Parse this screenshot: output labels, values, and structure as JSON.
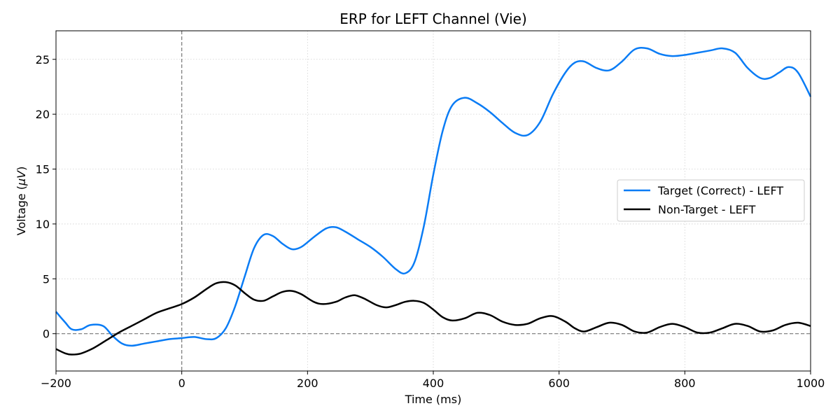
{
  "chart_data": {
    "type": "line",
    "title": "ERP for LEFT Channel (Vie)",
    "xlabel": "Time (ms)",
    "ylabel_prefix": "Voltage (",
    "ylabel_unit": "μV",
    "ylabel_suffix": ")",
    "xlim": [
      -200,
      1000
    ],
    "ylim": [
      -3.4,
      27.6
    ],
    "x_ticks": [
      -200,
      0,
      200,
      400,
      600,
      800,
      1000
    ],
    "y_ticks": [
      0,
      5,
      10,
      15,
      20,
      25
    ],
    "grid": true,
    "legend_position": "center-right",
    "reference_lines": {
      "x": 0,
      "y": 0
    },
    "series": [
      {
        "name": "Target (Correct) - LEFT",
        "color": "#0a7cf5",
        "x": [
          -200,
          -185,
          -175,
          -160,
          -145,
          -125,
          -110,
          -95,
          -80,
          -60,
          -40,
          -20,
          0,
          20,
          40,
          55,
          70,
          85,
          100,
          115,
          130,
          145,
          160,
          175,
          190,
          210,
          230,
          245,
          260,
          280,
          300,
          320,
          340,
          355,
          370,
          385,
          400,
          415,
          430,
          450,
          470,
          490,
          510,
          530,
          550,
          570,
          590,
          610,
          625,
          640,
          660,
          680,
          700,
          720,
          740,
          760,
          780,
          800,
          820,
          840,
          860,
          880,
          900,
          920,
          935,
          950,
          965,
          980,
          1000
        ],
        "y": [
          2.0,
          1.0,
          0.4,
          0.4,
          0.8,
          0.7,
          -0.2,
          -0.9,
          -1.1,
          -0.9,
          -0.7,
          -0.5,
          -0.4,
          -0.3,
          -0.5,
          -0.4,
          0.5,
          2.5,
          5.2,
          7.8,
          9.0,
          8.9,
          8.2,
          7.7,
          7.9,
          8.8,
          9.6,
          9.7,
          9.3,
          8.6,
          7.9,
          7.0,
          5.9,
          5.5,
          6.5,
          9.8,
          14.5,
          18.5,
          20.8,
          21.5,
          21.0,
          20.2,
          19.2,
          18.3,
          18.1,
          19.3,
          21.8,
          23.8,
          24.7,
          24.8,
          24.2,
          24.0,
          24.8,
          25.9,
          26.0,
          25.5,
          25.3,
          25.4,
          25.6,
          25.8,
          26.0,
          25.6,
          24.2,
          23.3,
          23.3,
          23.8,
          24.3,
          23.8,
          21.6
        ]
      },
      {
        "name": "Non-Target - LEFT",
        "color": "#000000",
        "x": [
          -200,
          -185,
          -175,
          -160,
          -140,
          -120,
          -100,
          -80,
          -60,
          -40,
          -20,
          0,
          20,
          40,
          55,
          70,
          85,
          100,
          115,
          130,
          145,
          160,
          175,
          190,
          210,
          225,
          245,
          260,
          275,
          290,
          310,
          325,
          340,
          355,
          370,
          385,
          400,
          415,
          430,
          450,
          470,
          490,
          510,
          530,
          550,
          570,
          590,
          610,
          625,
          640,
          660,
          680,
          700,
          720,
          740,
          760,
          780,
          800,
          820,
          840,
          860,
          880,
          900,
          920,
          940,
          960,
          980,
          1000
        ],
        "y": [
          -1.4,
          -1.8,
          -1.9,
          -1.8,
          -1.3,
          -0.6,
          0.1,
          0.7,
          1.3,
          1.9,
          2.3,
          2.7,
          3.3,
          4.1,
          4.6,
          4.7,
          4.4,
          3.7,
          3.1,
          3.0,
          3.4,
          3.8,
          3.9,
          3.6,
          2.9,
          2.7,
          2.9,
          3.3,
          3.5,
          3.2,
          2.6,
          2.4,
          2.6,
          2.9,
          3.0,
          2.8,
          2.2,
          1.5,
          1.2,
          1.4,
          1.9,
          1.7,
          1.1,
          0.8,
          0.9,
          1.4,
          1.6,
          1.1,
          0.5,
          0.2,
          0.6,
          1.0,
          0.8,
          0.2,
          0.1,
          0.6,
          0.9,
          0.6,
          0.1,
          0.1,
          0.5,
          0.9,
          0.7,
          0.2,
          0.3,
          0.8,
          1.0,
          0.7
        ]
      }
    ]
  }
}
